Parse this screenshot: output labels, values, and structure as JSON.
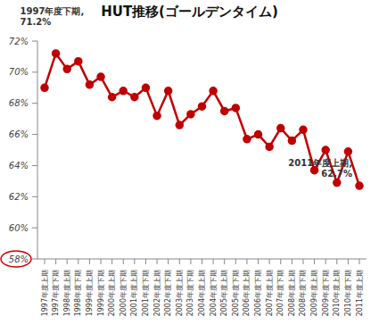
{
  "chart_data": {
    "type": "line",
    "title": "HUT推移(ゴールデンタイム)",
    "categories": [
      "1997年度上期",
      "1997年度下期",
      "1998年度上期",
      "1998年度下期",
      "1999年度上期",
      "1999年度下期",
      "2000年度上期",
      "2000年度下期",
      "2001年度上期",
      "2001年度下期",
      "2002年度上期",
      "2002年度下期",
      "2003年度上期",
      "2003年度下期",
      "2004年度上期",
      "2004年度下期",
      "2005年度上期",
      "2005年度下期",
      "2006年度上期",
      "2006年度下期",
      "2007年度上期",
      "2007年度下期",
      "2008年度上期",
      "2008年度下期",
      "2009年度上期",
      "2009年度下期",
      "2010年度上期",
      "2010年度下期",
      "2011年度上期"
    ],
    "values": [
      69.0,
      71.2,
      70.2,
      70.7,
      69.2,
      69.7,
      68.4,
      68.8,
      68.4,
      69.0,
      67.2,
      68.8,
      66.6,
      67.3,
      67.8,
      68.8,
      67.5,
      67.7,
      65.7,
      66.0,
      65.2,
      66.4,
      65.6,
      66.3,
      63.7,
      65.0,
      62.9,
      64.9,
      62.7
    ],
    "color": "#c00000",
    "marker": "circle",
    "ylim": [
      58,
      72
    ],
    "yticks": [
      {
        "value": 58,
        "label": "58%"
      },
      {
        "value": 60,
        "label": "60%"
      },
      {
        "value": 62,
        "label": "62%"
      },
      {
        "value": 64,
        "label": "64%"
      },
      {
        "value": 66,
        "label": "66%"
      },
      {
        "value": 68,
        "label": "68%"
      },
      {
        "value": 70,
        "label": "70%"
      },
      {
        "value": 72,
        "label": "72%"
      }
    ],
    "grid": false,
    "annotations": [
      {
        "category": "1997年度下期",
        "value": 71.2,
        "lines": [
          "1997年度下期,",
          "71.2%"
        ]
      },
      {
        "category": "2011年度上期",
        "value": 62.7,
        "lines": [
          "2011年度上期,",
          "62.7%"
        ]
      }
    ]
  }
}
